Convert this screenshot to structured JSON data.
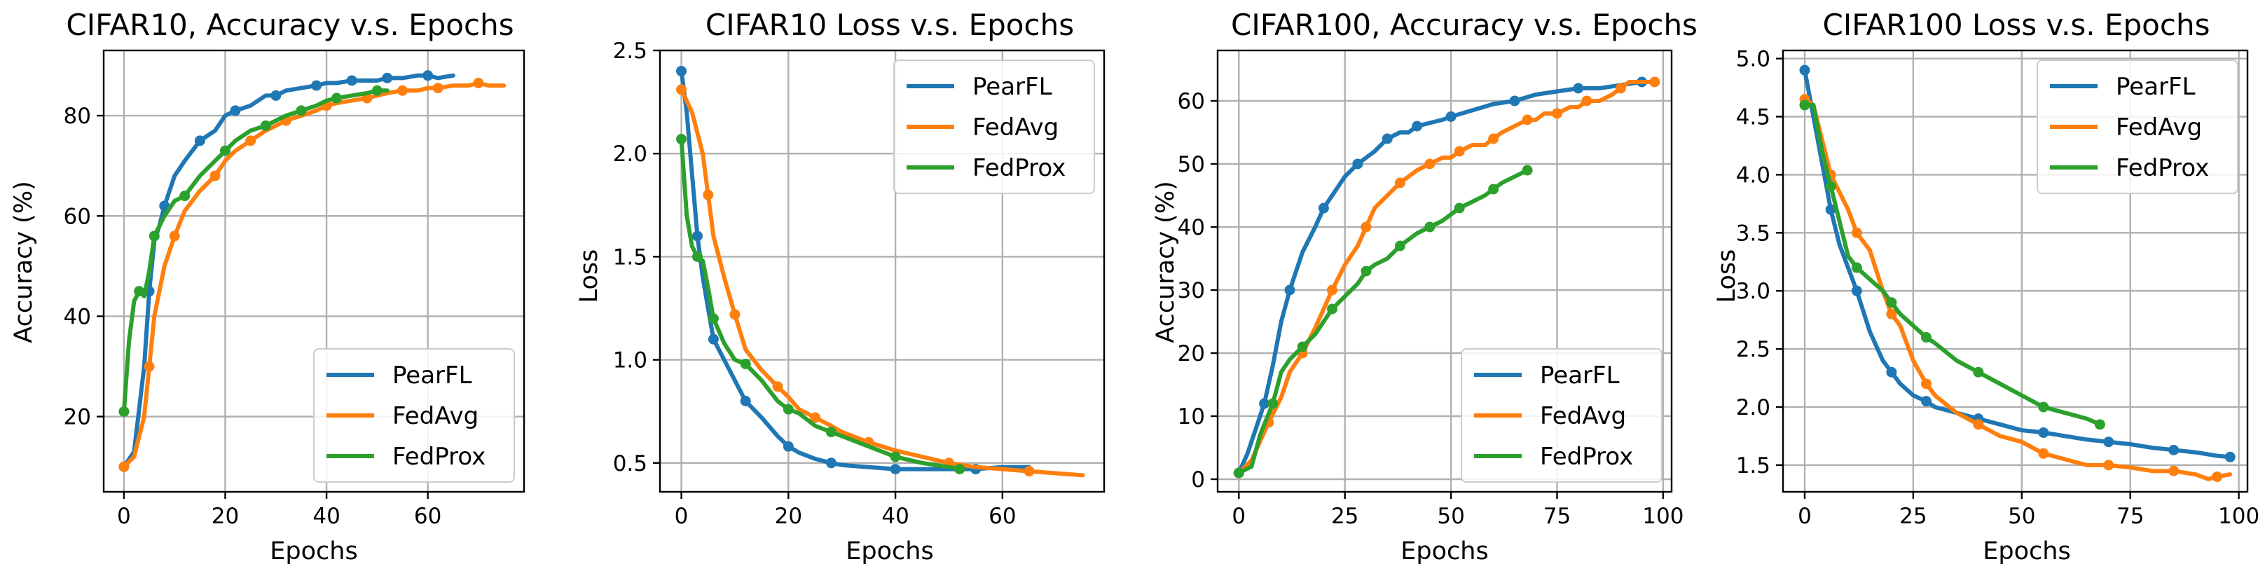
{
  "chart_data": [
    {
      "type": "line",
      "title": "CIFAR10, Accuracy v.s. Epochs",
      "xlabel": "Epochs",
      "ylabel": "Accuracy (%)",
      "xlim": [
        -4,
        79
      ],
      "ylim": [
        5,
        93
      ],
      "xticks": [
        "0",
        "20",
        "40",
        "60"
      ],
      "xtick_values": [
        0,
        20,
        40,
        60
      ],
      "yticks": [
        "20",
        "40",
        "60",
        "80"
      ],
      "ytick_values": [
        20,
        40,
        60,
        80
      ],
      "grid": true,
      "legend_position": "lower-right",
      "series": [
        {
          "name": "PearFL",
          "color": "#1f77b4",
          "x": [
            0,
            2,
            4,
            5,
            6,
            7,
            8,
            10,
            12,
            15,
            18,
            20,
            22,
            25,
            28,
            30,
            32,
            35,
            38,
            40,
            42,
            45,
            48,
            50,
            52,
            55,
            58,
            60,
            62,
            65
          ],
          "y": [
            10,
            13,
            30,
            45,
            55,
            58,
            62,
            68,
            71,
            75,
            77,
            80,
            81,
            82,
            84,
            84,
            85,
            85.5,
            86,
            86.5,
            86.5,
            87,
            87,
            87,
            87.5,
            87.5,
            88,
            88,
            87.5,
            88
          ]
        },
        {
          "name": "FedAvg",
          "color": "#ff7f0e",
          "x": [
            0,
            2,
            4,
            5,
            6,
            8,
            10,
            12,
            15,
            18,
            20,
            22,
            25,
            28,
            30,
            32,
            35,
            38,
            40,
            42,
            45,
            48,
            50,
            52,
            55,
            58,
            60,
            62,
            65,
            68,
            70,
            72,
            75
          ],
          "y": [
            10,
            12,
            20,
            30,
            40,
            50,
            56,
            61,
            65,
            68,
            71,
            73,
            75,
            77,
            78,
            79,
            80,
            81,
            82,
            82.5,
            83,
            83.5,
            84,
            84.5,
            85,
            85,
            85.5,
            85.5,
            86,
            86,
            86.5,
            86,
            86
          ]
        },
        {
          "name": "FedProx",
          "color": "#2ca02c",
          "x": [
            0,
            1,
            2,
            3,
            4,
            5,
            6,
            8,
            10,
            12,
            15,
            18,
            20,
            22,
            25,
            28,
            30,
            32,
            35,
            38,
            40,
            42,
            45,
            48,
            50,
            52
          ],
          "y": [
            21,
            35,
            43,
            45,
            44,
            49,
            56,
            60,
            63,
            64,
            68,
            71,
            73,
            75,
            77,
            78,
            79,
            80,
            81,
            82,
            83,
            83.5,
            84,
            84.5,
            85,
            85
          ]
        }
      ]
    },
    {
      "type": "line",
      "title": "CIFAR10 Loss v.s. Epochs",
      "xlabel": "Epochs",
      "ylabel": "Loss",
      "xlim": [
        -4,
        79
      ],
      "ylim": [
        0.36,
        2.5
      ],
      "xticks": [
        "0",
        "20",
        "40",
        "60"
      ],
      "xtick_values": [
        0,
        20,
        40,
        60
      ],
      "yticks": [
        "0.5",
        "1.0",
        "1.5",
        "2.0",
        "2.5"
      ],
      "ytick_values": [
        0.5,
        1.0,
        1.5,
        2.0,
        2.5
      ],
      "grid": true,
      "legend_position": "upper-right",
      "series": [
        {
          "name": "PearFL",
          "color": "#1f77b4",
          "x": [
            0,
            1,
            2,
            3,
            4,
            5,
            6,
            8,
            10,
            12,
            15,
            18,
            20,
            22,
            25,
            28,
            30,
            35,
            40,
            45,
            50,
            55,
            60,
            65
          ],
          "y": [
            2.4,
            2.2,
            1.9,
            1.6,
            1.4,
            1.25,
            1.1,
            1.0,
            0.9,
            0.8,
            0.72,
            0.63,
            0.58,
            0.55,
            0.52,
            0.5,
            0.49,
            0.48,
            0.47,
            0.47,
            0.47,
            0.47,
            0.48,
            0.48
          ]
        },
        {
          "name": "FedAvg",
          "color": "#ff7f0e",
          "x": [
            0,
            2,
            4,
            5,
            6,
            8,
            10,
            12,
            15,
            18,
            20,
            22,
            25,
            28,
            30,
            35,
            40,
            45,
            50,
            55,
            60,
            65,
            70,
            75
          ],
          "y": [
            2.31,
            2.2,
            2.0,
            1.8,
            1.6,
            1.4,
            1.22,
            1.05,
            0.95,
            0.87,
            0.82,
            0.76,
            0.72,
            0.68,
            0.65,
            0.6,
            0.56,
            0.53,
            0.5,
            0.48,
            0.47,
            0.46,
            0.45,
            0.44
          ]
        },
        {
          "name": "FedProx",
          "color": "#2ca02c",
          "x": [
            0,
            1,
            2,
            3,
            4,
            5,
            6,
            8,
            10,
            12,
            15,
            18,
            20,
            22,
            25,
            28,
            30,
            35,
            40,
            45,
            50,
            52
          ],
          "y": [
            2.07,
            1.7,
            1.55,
            1.5,
            1.48,
            1.35,
            1.2,
            1.08,
            1.0,
            0.98,
            0.9,
            0.8,
            0.76,
            0.74,
            0.68,
            0.65,
            0.63,
            0.58,
            0.53,
            0.5,
            0.48,
            0.47
          ]
        }
      ]
    },
    {
      "type": "line",
      "title": "CIFAR100, Accuracy v.s. Epochs",
      "xlabel": "Epochs",
      "ylabel": "Accuracy (%)",
      "xlim": [
        -5,
        102
      ],
      "ylim": [
        -2,
        68
      ],
      "xticks": [
        "0",
        "25",
        "50",
        "75",
        "100"
      ],
      "xtick_values": [
        0,
        25,
        50,
        75,
        100
      ],
      "yticks": [
        "0",
        "10",
        "20",
        "30",
        "40",
        "50",
        "60"
      ],
      "ytick_values": [
        0,
        10,
        20,
        30,
        40,
        50,
        60
      ],
      "grid": true,
      "legend_position": "lower-right",
      "series": [
        {
          "name": "PearFL",
          "color": "#1f77b4",
          "x": [
            0,
            2,
            4,
            6,
            8,
            10,
            12,
            15,
            18,
            20,
            22,
            25,
            28,
            30,
            32,
            35,
            38,
            40,
            42,
            45,
            48,
            50,
            55,
            60,
            65,
            70,
            75,
            80,
            85,
            90,
            95,
            98
          ],
          "y": [
            1,
            4,
            8,
            12,
            18,
            25,
            30,
            36,
            40,
            43,
            45,
            48,
            50,
            51,
            52,
            54,
            55,
            55,
            56,
            56.5,
            57,
            57.5,
            58.5,
            59.5,
            60,
            61,
            61.5,
            62,
            62,
            62.5,
            63,
            63
          ]
        },
        {
          "name": "FedAvg",
          "color": "#ff7f0e",
          "x": [
            0,
            3,
            5,
            7,
            10,
            12,
            15,
            18,
            20,
            22,
            25,
            28,
            30,
            32,
            35,
            38,
            40,
            42,
            45,
            48,
            50,
            52,
            55,
            58,
            60,
            62,
            65,
            68,
            70,
            72,
            75,
            78,
            80,
            82,
            85,
            88,
            90,
            92,
            95,
            98
          ],
          "y": [
            1,
            3,
            6,
            9,
            13,
            17,
            20,
            24,
            27,
            30,
            34,
            37,
            40,
            43,
            45,
            47,
            48,
            49,
            50,
            51,
            51,
            52,
            53,
            53,
            54,
            55,
            56,
            57,
            57,
            58,
            58,
            59,
            59,
            60,
            60,
            61,
            62,
            63,
            63,
            63
          ]
        },
        {
          "name": "FedProx",
          "color": "#2ca02c",
          "x": [
            0,
            3,
            5,
            8,
            10,
            12,
            15,
            18,
            20,
            22,
            25,
            28,
            30,
            32,
            35,
            38,
            40,
            42,
            45,
            48,
            50,
            52,
            55,
            58,
            60,
            62,
            65,
            68
          ],
          "y": [
            1,
            2,
            7,
            12,
            17,
            19,
            21,
            23,
            25,
            27,
            29,
            31,
            33,
            34,
            35,
            37,
            38,
            39,
            40,
            41,
            42,
            43,
            44,
            45,
            46,
            47,
            48,
            49
          ]
        }
      ]
    },
    {
      "type": "line",
      "title": "CIFAR100 Loss v.s. Epochs",
      "xlabel": "Epochs",
      "ylabel": "Loss",
      "xlim": [
        -5,
        102
      ],
      "ylim": [
        1.27,
        5.07
      ],
      "xticks": [
        "0",
        "25",
        "50",
        "75",
        "100"
      ],
      "xtick_values": [
        0,
        25,
        50,
        75,
        100
      ],
      "yticks": [
        "1.5",
        "2.0",
        "2.5",
        "3.0",
        "3.5",
        "4.0",
        "4.5",
        "5.0"
      ],
      "ytick_values": [
        1.5,
        2.0,
        2.5,
        3.0,
        3.5,
        4.0,
        4.5,
        5.0
      ],
      "grid": true,
      "legend_position": "upper-right",
      "series": [
        {
          "name": "PearFL",
          "color": "#1f77b4",
          "x": [
            0,
            2,
            4,
            6,
            8,
            10,
            12,
            15,
            18,
            20,
            22,
            25,
            28,
            30,
            35,
            40,
            45,
            50,
            55,
            60,
            65,
            70,
            75,
            80,
            85,
            90,
            95,
            98
          ],
          "y": [
            4.9,
            4.5,
            4.1,
            3.7,
            3.4,
            3.2,
            3.0,
            2.65,
            2.4,
            2.3,
            2.2,
            2.1,
            2.05,
            2.0,
            1.95,
            1.9,
            1.85,
            1.8,
            1.78,
            1.75,
            1.72,
            1.7,
            1.68,
            1.65,
            1.63,
            1.61,
            1.58,
            1.57
          ]
        },
        {
          "name": "FedAvg",
          "color": "#ff7f0e",
          "x": [
            0,
            2,
            4,
            6,
            8,
            10,
            12,
            15,
            18,
            20,
            22,
            25,
            28,
            30,
            35,
            40,
            45,
            50,
            55,
            60,
            65,
            70,
            75,
            80,
            85,
            90,
            93,
            95,
            98
          ],
          "y": [
            4.65,
            4.6,
            4.3,
            4.0,
            3.85,
            3.7,
            3.5,
            3.35,
            3.0,
            2.8,
            2.7,
            2.4,
            2.2,
            2.1,
            1.95,
            1.85,
            1.75,
            1.7,
            1.6,
            1.55,
            1.5,
            1.5,
            1.48,
            1.45,
            1.45,
            1.42,
            1.38,
            1.4,
            1.42
          ]
        },
        {
          "name": "FedProx",
          "color": "#2ca02c",
          "x": [
            0,
            2,
            4,
            6,
            8,
            10,
            12,
            15,
            18,
            20,
            22,
            25,
            28,
            30,
            35,
            40,
            45,
            50,
            55,
            60,
            65,
            68
          ],
          "y": [
            4.6,
            4.6,
            4.2,
            3.9,
            3.6,
            3.3,
            3.2,
            3.1,
            3.0,
            2.9,
            2.8,
            2.7,
            2.6,
            2.55,
            2.4,
            2.3,
            2.2,
            2.1,
            2.0,
            1.95,
            1.9,
            1.85
          ]
        }
      ]
    }
  ]
}
